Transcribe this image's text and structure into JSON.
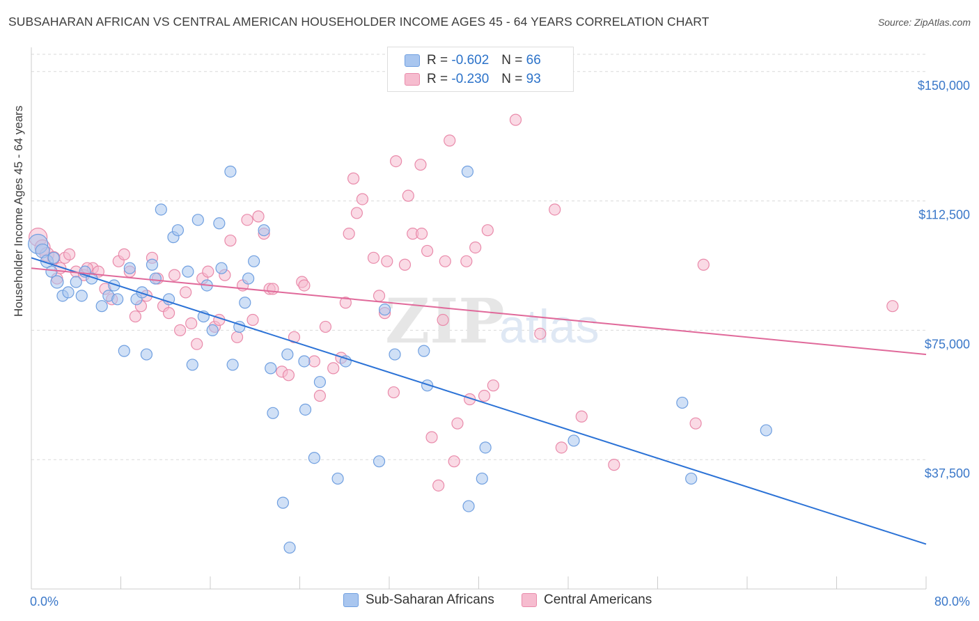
{
  "header": {
    "title": "SUBSAHARAN AFRICAN VS CENTRAL AMERICAN HOUSEHOLDER INCOME AGES 45 - 64 YEARS CORRELATION CHART",
    "source": "Source: ZipAtlas.com"
  },
  "watermark": {
    "zip": "ZIP",
    "atlas": "atlas"
  },
  "stats": {
    "blue": {
      "r_label": "R =",
      "r_value": "-0.602",
      "n_label": "N =",
      "n_value": "66"
    },
    "pink": {
      "r_label": "R =",
      "r_value": "-0.230",
      "n_label": "N =",
      "n_value": "93"
    }
  },
  "colors": {
    "blue_fill": "#a9c6ef",
    "blue_stroke": "#6f9fe0",
    "blue_line": "#2b72d6",
    "pink_fill": "#f6bccf",
    "pink_stroke": "#e98aaa",
    "pink_line": "#e0699a",
    "tick_label": "#3b78c9",
    "grid": "#d9d9d9"
  },
  "chart_data": {
    "type": "scatter",
    "title": "SUBSAHARAN AFRICAN VS CENTRAL AMERICAN HOUSEHOLDER INCOME AGES 45 - 64 YEARS CORRELATION CHART",
    "xlabel": "",
    "ylabel": "Householder Income Ages 45 - 64 years",
    "xlim": [
      0,
      80
    ],
    "ylim": [
      0,
      155000
    ],
    "x_tick_labels": [
      "0.0%",
      "80.0%"
    ],
    "y_ticks": [
      37500,
      75000,
      112500,
      150000
    ],
    "y_tick_labels": [
      "$37,500",
      "$75,000",
      "$112,500",
      "$150,000"
    ],
    "grid": "horizontal dashed",
    "legend_position": "bottom-center",
    "series": [
      {
        "name": "Sub-Saharan Africans",
        "color": "#a9c6ef",
        "trend": {
          "x": [
            0,
            80
          ],
          "y": [
            96000,
            13000
          ]
        },
        "points": [
          [
            0.6,
            100000,
            14
          ],
          [
            1.0,
            98000,
            10
          ],
          [
            1.4,
            95000,
            9
          ],
          [
            1.8,
            92000,
            8
          ],
          [
            2.3,
            89000,
            9
          ],
          [
            2.8,
            85000,
            8
          ],
          [
            3.3,
            86000,
            8
          ],
          [
            4.0,
            89000,
            8
          ],
          [
            4.5,
            85000,
            8
          ],
          [
            5.4,
            90000,
            8
          ],
          [
            6.3,
            82000,
            8
          ],
          [
            6.9,
            85000,
            8
          ],
          [
            7.7,
            84000,
            8
          ],
          [
            7.4,
            88000,
            8
          ],
          [
            8.3,
            69000,
            8
          ],
          [
            8.8,
            93000,
            8
          ],
          [
            9.4,
            84000,
            8
          ],
          [
            9.9,
            86000,
            8
          ],
          [
            10.3,
            68000,
            8
          ],
          [
            10.8,
            94000,
            8
          ],
          [
            11.1,
            90000,
            8
          ],
          [
            11.6,
            110000,
            8
          ],
          [
            12.3,
            84000,
            8
          ],
          [
            12.7,
            102000,
            8
          ],
          [
            13.1,
            104000,
            8
          ],
          [
            14.0,
            92000,
            8
          ],
          [
            14.4,
            65000,
            8
          ],
          [
            14.9,
            107000,
            8
          ],
          [
            15.4,
            79000,
            8
          ],
          [
            15.7,
            88000,
            8
          ],
          [
            16.2,
            75000,
            8
          ],
          [
            16.8,
            106000,
            8
          ],
          [
            17.0,
            93000,
            8
          ],
          [
            17.8,
            121000,
            8
          ],
          [
            18.0,
            65000,
            8
          ],
          [
            18.6,
            76000,
            8
          ],
          [
            19.1,
            83000,
            8
          ],
          [
            19.4,
            90000,
            8
          ],
          [
            19.9,
            95000,
            8
          ],
          [
            20.8,
            104000,
            8
          ],
          [
            21.4,
            64000,
            8
          ],
          [
            21.6,
            51000,
            8
          ],
          [
            22.5,
            25000,
            8
          ],
          [
            22.9,
            68000,
            8
          ],
          [
            23.1,
            12000,
            8
          ],
          [
            24.4,
            66000,
            8
          ],
          [
            24.5,
            52000,
            8
          ],
          [
            25.8,
            60000,
            8
          ],
          [
            25.3,
            38000,
            8
          ],
          [
            27.4,
            32000,
            8
          ],
          [
            28.1,
            66000,
            8
          ],
          [
            31.1,
            37000,
            8
          ],
          [
            31.6,
            81000,
            8
          ],
          [
            32.5,
            68000,
            8
          ],
          [
            35.1,
            69000,
            8
          ],
          [
            35.4,
            59000,
            8
          ],
          [
            39.0,
            121000,
            8
          ],
          [
            39.1,
            24000,
            8
          ],
          [
            40.3,
            32000,
            8
          ],
          [
            40.6,
            41000,
            8
          ],
          [
            48.5,
            43000,
            8
          ],
          [
            58.2,
            54000,
            8
          ],
          [
            59.0,
            32000,
            8
          ],
          [
            65.7,
            46000,
            8
          ],
          [
            2.0,
            96000,
            8
          ],
          [
            4.8,
            92000,
            8
          ]
        ]
      },
      {
        "name": "Central Americans",
        "color": "#f6bccf",
        "trend": {
          "x": [
            0,
            80
          ],
          "y": [
            93000,
            68000
          ]
        },
        "points": [
          [
            0.6,
            102000,
            13
          ],
          [
            1.0,
            99000,
            11
          ],
          [
            1.4,
            97000,
            10
          ],
          [
            2.0,
            96000,
            9
          ],
          [
            2.6,
            93000,
            8
          ],
          [
            3.0,
            96000,
            8
          ],
          [
            3.4,
            97000,
            8
          ],
          [
            4.0,
            92000,
            8
          ],
          [
            4.7,
            91000,
            8
          ],
          [
            5.5,
            93000,
            8
          ],
          [
            6.0,
            92000,
            8
          ],
          [
            6.6,
            87000,
            8
          ],
          [
            7.2,
            84000,
            8
          ],
          [
            7.8,
            95000,
            8
          ],
          [
            8.3,
            97000,
            8
          ],
          [
            8.8,
            92000,
            8
          ],
          [
            9.3,
            79000,
            8
          ],
          [
            9.8,
            82000,
            8
          ],
          [
            10.3,
            85000,
            8
          ],
          [
            10.8,
            96000,
            8
          ],
          [
            11.3,
            90000,
            8
          ],
          [
            11.8,
            82000,
            8
          ],
          [
            12.3,
            80000,
            8
          ],
          [
            12.8,
            91000,
            8
          ],
          [
            13.3,
            75000,
            8
          ],
          [
            13.8,
            86000,
            8
          ],
          [
            14.3,
            77000,
            8
          ],
          [
            14.8,
            71000,
            8
          ],
          [
            15.3,
            90000,
            8
          ],
          [
            15.8,
            92000,
            8
          ],
          [
            16.4,
            76000,
            8
          ],
          [
            16.8,
            78000,
            8
          ],
          [
            17.3,
            91000,
            8
          ],
          [
            17.8,
            101000,
            8
          ],
          [
            18.4,
            73000,
            8
          ],
          [
            18.9,
            88000,
            8
          ],
          [
            19.3,
            107000,
            8
          ],
          [
            19.8,
            78000,
            8
          ],
          [
            20.3,
            108000,
            8
          ],
          [
            20.8,
            103000,
            8
          ],
          [
            21.3,
            87000,
            8
          ],
          [
            21.6,
            87000,
            8
          ],
          [
            22.4,
            63000,
            8
          ],
          [
            23.0,
            62000,
            8
          ],
          [
            23.5,
            73000,
            8
          ],
          [
            24.2,
            89000,
            8
          ],
          [
            24.4,
            88000,
            8
          ],
          [
            25.3,
            66000,
            8
          ],
          [
            25.8,
            56000,
            8
          ],
          [
            26.3,
            76000,
            8
          ],
          [
            27.0,
            64000,
            8
          ],
          [
            27.7,
            67000,
            8
          ],
          [
            28.1,
            83000,
            8
          ],
          [
            28.4,
            103000,
            8
          ],
          [
            28.8,
            119000,
            8
          ],
          [
            29.1,
            109000,
            8
          ],
          [
            29.6,
            113000,
            8
          ],
          [
            30.6,
            96000,
            8
          ],
          [
            31.1,
            85000,
            8
          ],
          [
            31.6,
            80000,
            8
          ],
          [
            31.8,
            95000,
            8
          ],
          [
            32.4,
            57000,
            8
          ],
          [
            32.6,
            124000,
            8
          ],
          [
            33.4,
            94000,
            8
          ],
          [
            33.7,
            114000,
            8
          ],
          [
            34.1,
            103000,
            8
          ],
          [
            34.8,
            123000,
            8
          ],
          [
            34.9,
            103000,
            8
          ],
          [
            35.4,
            98000,
            8
          ],
          [
            35.8,
            44000,
            8
          ],
          [
            36.4,
            30000,
            8
          ],
          [
            36.8,
            78000,
            8
          ],
          [
            37.0,
            95000,
            8
          ],
          [
            37.4,
            130000,
            8
          ],
          [
            37.8,
            37000,
            8
          ],
          [
            38.1,
            48000,
            8
          ],
          [
            38.9,
            95000,
            8
          ],
          [
            39.2,
            55000,
            8
          ],
          [
            39.7,
            99000,
            8
          ],
          [
            40.5,
            56000,
            8
          ],
          [
            40.8,
            104000,
            8
          ],
          [
            41.3,
            59000,
            8
          ],
          [
            43.3,
            136000,
            8
          ],
          [
            45.5,
            74000,
            8
          ],
          [
            47.4,
            41000,
            8
          ],
          [
            46.8,
            110000,
            8
          ],
          [
            49.2,
            50000,
            8
          ],
          [
            52.1,
            36000,
            8
          ],
          [
            59.4,
            48000,
            8
          ],
          [
            60.1,
            94000,
            8
          ],
          [
            77.0,
            82000,
            8
          ],
          [
            2.3,
            90000,
            8
          ],
          [
            5.0,
            93000,
            8
          ]
        ]
      }
    ]
  },
  "legend": {
    "blue_label": "Sub-Saharan Africans",
    "pink_label": "Central Americans"
  }
}
